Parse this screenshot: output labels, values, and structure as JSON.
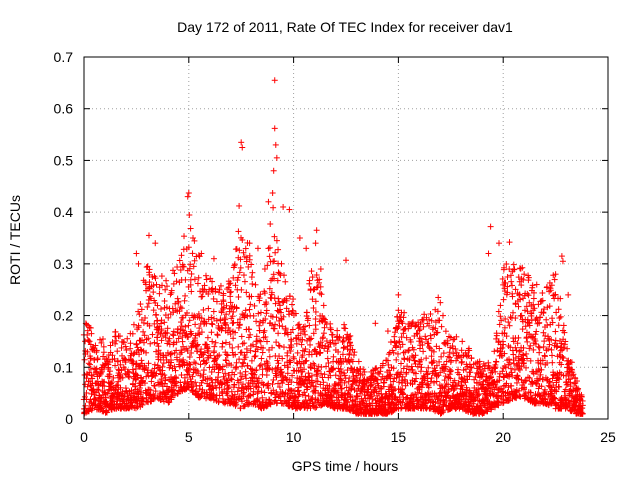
{
  "chart_data": {
    "type": "scatter",
    "title": "Day 172 of 2011, Rate Of TEC Index for receiver dav1",
    "xlabel": "GPS time / hours",
    "ylabel": "ROTI / TECUs",
    "xlim": [
      0,
      25
    ],
    "ylim": [
      0,
      0.7
    ],
    "xticks": [
      0,
      5,
      10,
      15,
      20,
      25
    ],
    "yticks": [
      0,
      0.1,
      0.2,
      0.3,
      0.4,
      0.5,
      0.6,
      0.7
    ],
    "xtick_labels": [
      "0",
      "5",
      "10",
      "15",
      "20",
      "25"
    ],
    "ytick_labels": [
      "0",
      "0.1",
      "0.2",
      "0.3",
      "0.4",
      "0.5",
      "0.6",
      "0.7"
    ],
    "grid": true,
    "marker": "+",
    "series_color": "#ff0000",
    "series": [
      {
        "name": "dav1",
        "envelope": {
          "x": [
            0.0,
            0.5,
            1.0,
            1.5,
            2.0,
            2.5,
            3.0,
            3.5,
            4.0,
            4.5,
            5.0,
            5.5,
            6.0,
            6.5,
            7.0,
            7.5,
            8.0,
            8.5,
            9.0,
            9.5,
            10.0,
            10.5,
            11.0,
            11.5,
            12.0,
            12.5,
            13.0,
            13.5,
            14.0,
            14.5,
            15.0,
            15.5,
            16.0,
            16.5,
            17.0,
            17.5,
            18.0,
            18.5,
            19.0,
            19.5,
            20.0,
            20.5,
            21.0,
            21.5,
            22.0,
            22.5,
            23.0,
            23.5,
            23.8
          ],
          "high": [
            0.19,
            0.18,
            0.15,
            0.17,
            0.16,
            0.2,
            0.3,
            0.28,
            0.28,
            0.3,
            0.4,
            0.33,
            0.28,
            0.26,
            0.27,
            0.4,
            0.3,
            0.25,
            0.42,
            0.3,
            0.23,
            0.18,
            0.35,
            0.2,
            0.17,
            0.19,
            0.12,
            0.09,
            0.1,
            0.12,
            0.22,
            0.2,
            0.2,
            0.22,
            0.22,
            0.16,
            0.16,
            0.13,
            0.12,
            0.1,
            0.3,
            0.3,
            0.3,
            0.25,
            0.25,
            0.3,
            0.15,
            0.08,
            0.05
          ],
          "low": [
            0.01,
            0.02,
            0.01,
            0.02,
            0.02,
            0.02,
            0.03,
            0.04,
            0.03,
            0.05,
            0.06,
            0.04,
            0.04,
            0.03,
            0.03,
            0.02,
            0.03,
            0.02,
            0.03,
            0.03,
            0.02,
            0.02,
            0.02,
            0.03,
            0.02,
            0.02,
            0.01,
            0.01,
            0.01,
            0.01,
            0.02,
            0.02,
            0.02,
            0.02,
            0.01,
            0.02,
            0.02,
            0.01,
            0.01,
            0.02,
            0.03,
            0.04,
            0.04,
            0.03,
            0.03,
            0.02,
            0.02,
            0.01,
            0.01
          ]
        },
        "outliers": [
          [
            9.1,
            0.655
          ],
          [
            9.1,
            0.562
          ],
          [
            9.15,
            0.53
          ],
          [
            9.2,
            0.505
          ],
          [
            9.05,
            0.48
          ],
          [
            7.5,
            0.535
          ],
          [
            7.55,
            0.525
          ],
          [
            5.0,
            0.437
          ],
          [
            4.95,
            0.43
          ],
          [
            9.0,
            0.437
          ],
          [
            8.8,
            0.42
          ],
          [
            7.4,
            0.412
          ],
          [
            9.5,
            0.41
          ],
          [
            9.8,
            0.405
          ],
          [
            11.1,
            0.365
          ],
          [
            11.05,
            0.34
          ],
          [
            3.1,
            0.355
          ],
          [
            3.4,
            0.34
          ],
          [
            19.4,
            0.372
          ],
          [
            20.3,
            0.342
          ],
          [
            12.5,
            0.307
          ],
          [
            2.5,
            0.32
          ],
          [
            2.6,
            0.3
          ],
          [
            22.8,
            0.315
          ],
          [
            22.85,
            0.305
          ],
          [
            13.9,
            0.185
          ],
          [
            14.5,
            0.17
          ],
          [
            15.0,
            0.24
          ],
          [
            16.9,
            0.235
          ],
          [
            17.0,
            0.225
          ],
          [
            19.3,
            0.32
          ],
          [
            21.0,
            0.28
          ],
          [
            22.5,
            0.28
          ],
          [
            23.1,
            0.24
          ],
          [
            5.2,
            0.35
          ],
          [
            5.6,
            0.32
          ],
          [
            6.2,
            0.31
          ],
          [
            7.9,
            0.34
          ],
          [
            8.3,
            0.33
          ],
          [
            10.3,
            0.35
          ],
          [
            10.6,
            0.33
          ],
          [
            11.3,
            0.29
          ],
          [
            19.8,
            0.34
          ],
          [
            21.6,
            0.26
          ],
          [
            23.5,
            0.06
          ]
        ]
      }
    ]
  }
}
